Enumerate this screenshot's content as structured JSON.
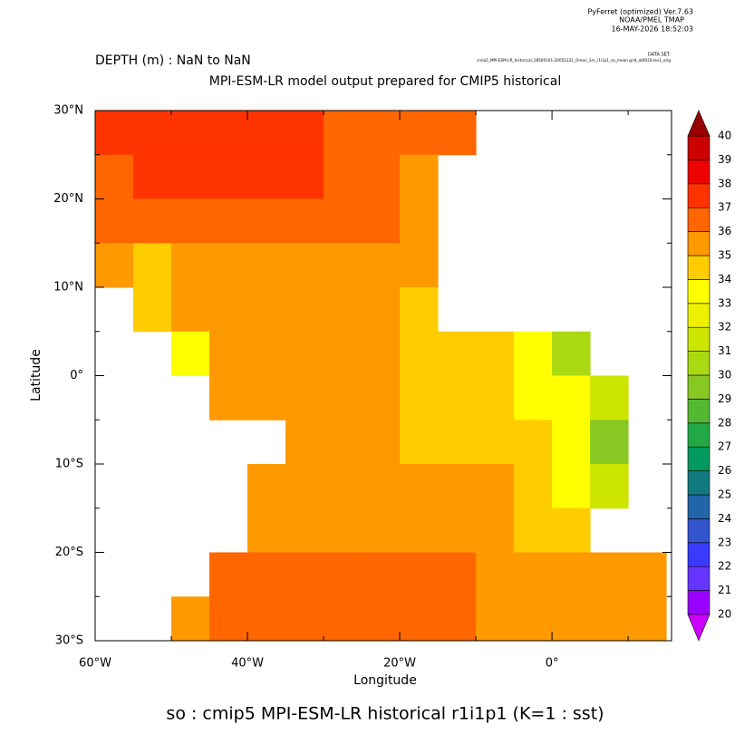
{
  "chart_data": {
    "type": "heatmap",
    "header": [
      "PyFerret (optimized) Ver.7.63",
      "NOAA/PMEL TMAP",
      "16-MAY-2026 18:52:03"
    ],
    "subtitle": "DEPTH (m) : NaN to NaN",
    "dataset_label": "DATA SET:",
    "dataset": "cmip5_MPI-ESM-LR_historical_18500101-20051231_Omon_1m_r1i1p1_so_mean.grid_at0025-lev1_orig",
    "title": "MPI-ESM-LR model output prepared for CMIP5 historical",
    "x_label": "Longitude",
    "y_label": "Latitude",
    "footer": "so : cmip5 MPI-ESM-LR historical r1i1p1   (K=1 : sst)",
    "xlim": [
      -60,
      15.7
    ],
    "ylim": [
      -30,
      30
    ],
    "xticks": [
      {
        "value": -60,
        "label": "60°W"
      },
      {
        "value": -40,
        "label": "40°W"
      },
      {
        "value": -20,
        "label": "20°W"
      },
      {
        "value": 0,
        "label": "0°"
      }
    ],
    "yticks": [
      {
        "value": -30,
        "label": "30°S"
      },
      {
        "value": -20,
        "label": "20°S"
      },
      {
        "value": -10,
        "label": "10°S"
      },
      {
        "value": 0,
        "label": "0°"
      },
      {
        "value": 10,
        "label": "10°N"
      },
      {
        "value": 20,
        "label": "20°N"
      },
      {
        "value": 30,
        "label": "30°N"
      }
    ],
    "x": [
      -57.5,
      -52.5,
      -47.5,
      -42.5,
      -37.5,
      -32.5,
      -27.5,
      -22.5,
      -17.5,
      -12.5,
      -7.5,
      -2.5,
      2.5,
      7.5,
      12.5
    ],
    "y": [
      27.5,
      22.5,
      17.5,
      12.5,
      7.5,
      2.5,
      -2.5,
      -7.5,
      -12.5,
      -17.5,
      -22.5,
      -27.5
    ],
    "z": [
      [
        37.5,
        37.5,
        37.5,
        37.5,
        37.5,
        37.5,
        36.5,
        36.5,
        36.5,
        36.5,
        null,
        null,
        null,
        null,
        null
      ],
      [
        36.5,
        37.5,
        37.5,
        37.5,
        37.5,
        37.5,
        36.5,
        36.5,
        35.5,
        null,
        null,
        null,
        null,
        null,
        null
      ],
      [
        36.5,
        36.5,
        36.5,
        36.5,
        36.5,
        36.5,
        36.5,
        36.5,
        35.5,
        null,
        null,
        null,
        null,
        null,
        null
      ],
      [
        35.5,
        34.5,
        35.5,
        35.5,
        35.5,
        35.5,
        35.5,
        35.5,
        35.5,
        null,
        null,
        null,
        null,
        null,
        null
      ],
      [
        null,
        34.5,
        35.5,
        35.5,
        35.5,
        35.5,
        35.5,
        35.5,
        34.5,
        null,
        null,
        null,
        null,
        null,
        null
      ],
      [
        null,
        null,
        33.5,
        35.5,
        35.5,
        35.5,
        35.5,
        35.5,
        34.5,
        34.5,
        34.5,
        33.5,
        30.5,
        null,
        null
      ],
      [
        null,
        null,
        null,
        35.5,
        35.5,
        35.5,
        35.5,
        35.5,
        34.5,
        34.5,
        34.5,
        33.5,
        33.5,
        31.5,
        null
      ],
      [
        null,
        null,
        null,
        null,
        null,
        35.5,
        35.5,
        35.5,
        34.5,
        34.5,
        34.5,
        34.5,
        33.5,
        29.5,
        null
      ],
      [
        null,
        null,
        null,
        null,
        35.5,
        35.5,
        35.5,
        35.5,
        35.5,
        35.5,
        35.5,
        34.5,
        33.5,
        31.5,
        null
      ],
      [
        null,
        null,
        null,
        null,
        35.5,
        35.5,
        35.5,
        35.5,
        35.5,
        35.5,
        35.5,
        34.5,
        34.5,
        null,
        null
      ],
      [
        null,
        null,
        null,
        36.5,
        36.5,
        36.5,
        36.5,
        36.5,
        36.5,
        36.5,
        35.5,
        35.5,
        35.5,
        35.5,
        35.5
      ],
      [
        null,
        null,
        35.5,
        36.5,
        36.5,
        36.5,
        36.5,
        36.5,
        36.5,
        36.5,
        35.5,
        35.5,
        35.5,
        35.5,
        35.5
      ]
    ],
    "levels": [
      20,
      21,
      22,
      23,
      24,
      25,
      26,
      27,
      28,
      29,
      30,
      31,
      32,
      33,
      34,
      35,
      36,
      37,
      38,
      39,
      40
    ],
    "colors": [
      "#9a00ff",
      "#6633ff",
      "#3a3aff",
      "#3355cc",
      "#2266aa",
      "#117a80",
      "#009960",
      "#22a844",
      "#55b833",
      "#88c822",
      "#aad811",
      "#cce600",
      "#eef000",
      "#ffff00",
      "#ffcc00",
      "#ff9900",
      "#ff6600",
      "#ff3300",
      "#ee0000",
      "#cc0000"
    ],
    "under_color": "#cc00ff",
    "over_color": "#990000"
  }
}
